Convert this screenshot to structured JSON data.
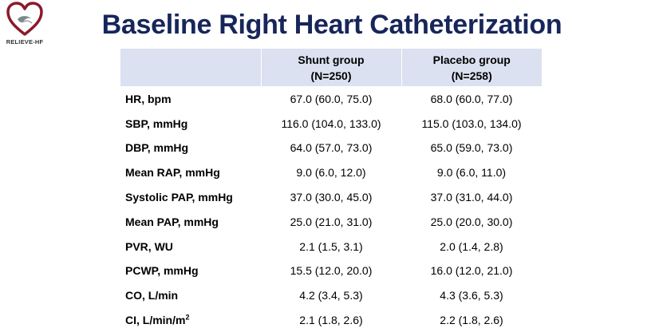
{
  "logo": {
    "text": "RELIEVE-HF",
    "heart_color": "#8b1a2b",
    "accent_color": "#7a8a8a"
  },
  "slide": {
    "title": "Baseline Right Heart Catheterization",
    "title_color": "#17265a",
    "header_bg": "#dbe1f0"
  },
  "table": {
    "columns": [
      {
        "name": "",
        "n": ""
      },
      {
        "name": "Shunt group",
        "n": "(N=250)"
      },
      {
        "name": "Placebo group",
        "n": "(N=258)"
      }
    ],
    "rows": [
      {
        "label": "HR, bpm",
        "sup": "",
        "shunt": "67.0 (60.0, 75.0)",
        "placebo": "68.0 (60.0, 77.0)"
      },
      {
        "label": "SBP, mmHg",
        "sup": "",
        "shunt": "116.0 (104.0, 133.0)",
        "placebo": "115.0 (103.0, 134.0)"
      },
      {
        "label": "DBP, mmHg",
        "sup": "",
        "shunt": "64.0 (57.0, 73.0)",
        "placebo": "65.0 (59.0, 73.0)"
      },
      {
        "label": "Mean RAP, mmHg",
        "sup": "",
        "shunt": "9.0 (6.0, 12.0)",
        "placebo": "9.0 (6.0, 11.0)"
      },
      {
        "label": "Systolic PAP, mmHg",
        "sup": "",
        "shunt": "37.0 (30.0, 45.0)",
        "placebo": "37.0 (31.0, 44.0)"
      },
      {
        "label": "Mean PAP, mmHg",
        "sup": "",
        "shunt": "25.0 (21.0, 31.0)",
        "placebo": "25.0 (20.0, 30.0)"
      },
      {
        "label": "PVR, WU",
        "sup": "",
        "shunt": "2.1 (1.5, 3.1)",
        "placebo": "2.0 (1.4, 2.8)"
      },
      {
        "label": "PCWP, mmHg",
        "sup": "",
        "shunt": "15.5 (12.0, 20.0)",
        "placebo": "16.0 (12.0, 21.0)"
      },
      {
        "label": "CO, L/min",
        "sup": "",
        "shunt": "4.2 (3.4, 5.3)",
        "placebo": "4.3 (3.6, 5.3)"
      },
      {
        "label": "CI, L/min/m",
        "sup": "2",
        "shunt": "2.1 (1.8, 2.6)",
        "placebo": "2.2 (1.8, 2.6)"
      }
    ]
  }
}
